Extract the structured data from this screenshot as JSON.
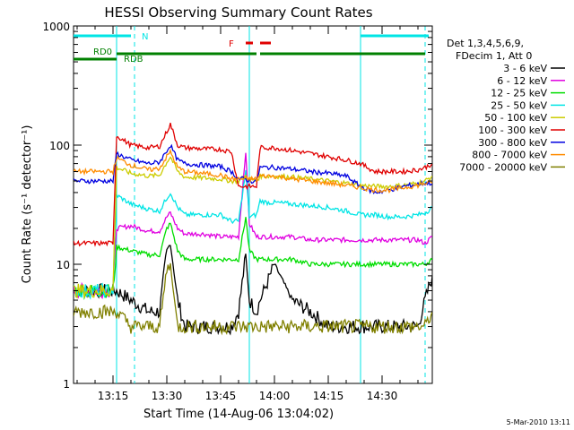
{
  "chart_data": {
    "type": "line",
    "title": "HESSI Observing Summary Count Rates",
    "xlabel": "Start Time (14-Aug-06 13:04:02)",
    "ylabel": "Count Rate (s⁻¹ detector⁻¹)",
    "xlim": [
      "13:04",
      "14:44"
    ],
    "ylim": [
      1,
      1000
    ],
    "y_scale": "log",
    "x_ticks": [
      "13:15",
      "13:30",
      "13:45",
      "14:00",
      "14:15",
      "14:30"
    ],
    "y_ticks": [
      "1",
      "10",
      "100",
      "1000"
    ],
    "grid": false,
    "legend_position": "right",
    "legend_header": [
      "Det 1,3,4,5,6,9,",
      "FDecim 1, Att 0"
    ],
    "footer": "5-Mar-2010 13:11",
    "flags": [
      {
        "label": "N",
        "color": "#00e5e5",
        "segments": [
          [
            "13:04",
            "13:20"
          ],
          [
            "14:24",
            "14:43"
          ]
        ]
      },
      {
        "label": "F",
        "color": "#e00000",
        "segments": [
          [
            "13:52",
            "13:54"
          ],
          [
            "13:56",
            "13:59"
          ]
        ]
      },
      {
        "label": "RD0",
        "color": "#008000",
        "segments": [
          [
            "13:04",
            "13:16"
          ]
        ]
      },
      {
        "label": "RDB",
        "color": "#008000",
        "segments": [
          [
            "13:16",
            "13:48"
          ],
          [
            "13:48",
            "13:55"
          ],
          [
            "13:56",
            "14:42"
          ]
        ]
      }
    ],
    "vertical_lines": [
      {
        "time": "13:16",
        "color": "#00e5e5",
        "style": "solid"
      },
      {
        "time": "13:21",
        "color": "#00e5e5",
        "style": "dashed"
      },
      {
        "time": "13:53",
        "color": "#00e5e5",
        "style": "solid"
      },
      {
        "time": "14:24",
        "color": "#00e5e5",
        "style": "solid"
      },
      {
        "time": "14:42",
        "color": "#00e5e5",
        "style": "dashed"
      }
    ],
    "x": [
      "13:04",
      "13:10",
      "13:15",
      "13:16",
      "13:20",
      "13:25",
      "13:28",
      "13:30",
      "13:31",
      "13:33",
      "13:35",
      "13:40",
      "13:45",
      "13:48",
      "13:50",
      "13:52",
      "13:53",
      "13:55",
      "13:56",
      "13:58",
      "14:00",
      "14:05",
      "14:10",
      "14:15",
      "14:20",
      "14:24",
      "14:28",
      "14:32",
      "14:36",
      "14:40",
      "14:42",
      "14:44"
    ],
    "series": [
      {
        "name": "3 - 6 keV",
        "color": "#000000",
        "values": [
          6,
          6,
          6,
          6,
          5,
          4,
          4,
          13,
          15,
          5,
          3,
          3,
          3,
          3,
          4,
          12,
          5,
          4,
          5,
          7,
          10,
          5,
          4,
          3,
          3,
          3,
          3,
          3,
          3,
          3,
          5,
          8
        ]
      },
      {
        "name": "6 - 12 keV",
        "color": "#e000e0",
        "values": [
          6,
          6,
          6,
          20,
          21,
          19,
          19,
          25,
          27,
          20,
          18,
          18,
          17,
          17,
          17,
          90,
          22,
          17,
          17,
          17,
          17,
          17,
          16,
          16,
          16,
          16,
          16,
          16,
          16,
          16,
          15,
          17
        ]
      },
      {
        "name": "12 - 25 keV",
        "color": "#00dd00",
        "values": [
          6,
          6,
          6,
          14,
          13,
          12,
          12,
          20,
          22,
          13,
          11,
          11,
          11,
          11,
          11,
          25,
          13,
          11,
          11,
          11,
          11,
          11,
          10,
          10,
          10,
          10,
          10,
          10,
          10,
          10,
          10,
          11
        ]
      },
      {
        "name": "25 - 50 keV",
        "color": "#00e5e5",
        "values": [
          6,
          6,
          6,
          38,
          32,
          29,
          28,
          36,
          40,
          30,
          26,
          26,
          26,
          23,
          23,
          60,
          25,
          26,
          34,
          33,
          33,
          32,
          31,
          30,
          28,
          26,
          26,
          25,
          25,
          26,
          27,
          30
        ]
      },
      {
        "name": "50 - 100 keV",
        "color": "#cccc00",
        "values": [
          6,
          6,
          6,
          65,
          58,
          55,
          56,
          72,
          80,
          60,
          54,
          53,
          52,
          50,
          50,
          55,
          52,
          50,
          55,
          55,
          55,
          54,
          52,
          50,
          48,
          46,
          45,
          45,
          46,
          48,
          50,
          55
        ]
      },
      {
        "name": "100 - 300 keV",
        "color": "#e00000",
        "values": [
          15,
          15,
          15,
          120,
          100,
          95,
          98,
          130,
          150,
          100,
          95,
          93,
          92,
          88,
          45,
          45,
          45,
          45,
          95,
          95,
          95,
          90,
          85,
          80,
          75,
          70,
          60,
          60,
          60,
          62,
          65,
          70
        ]
      },
      {
        "name": "300 - 800 keV",
        "color": "#0000e0",
        "values": [
          50,
          50,
          50,
          85,
          75,
          70,
          72,
          90,
          100,
          75,
          70,
          68,
          66,
          60,
          52,
          52,
          50,
          50,
          65,
          65,
          65,
          63,
          60,
          58,
          55,
          45,
          40,
          42,
          45,
          47,
          48,
          48
        ]
      },
      {
        "name": "800 - 7000 keV",
        "color": "#ff8c00",
        "values": [
          60,
          60,
          60,
          78,
          68,
          62,
          64,
          80,
          88,
          65,
          60,
          58,
          56,
          52,
          52,
          52,
          52,
          52,
          55,
          55,
          55,
          52,
          50,
          48,
          46,
          44,
          42,
          42,
          44,
          46,
          48,
          48
        ]
      },
      {
        "name": "7000 - 20000 keV",
        "color": "#808000",
        "values": [
          4,
          4,
          4,
          4,
          3,
          3,
          3,
          9,
          10,
          3,
          3,
          3,
          3,
          3,
          3,
          3,
          3,
          3,
          3,
          3,
          3,
          3,
          3,
          3,
          3,
          3,
          3,
          3,
          3,
          3,
          3,
          4
        ]
      }
    ]
  }
}
